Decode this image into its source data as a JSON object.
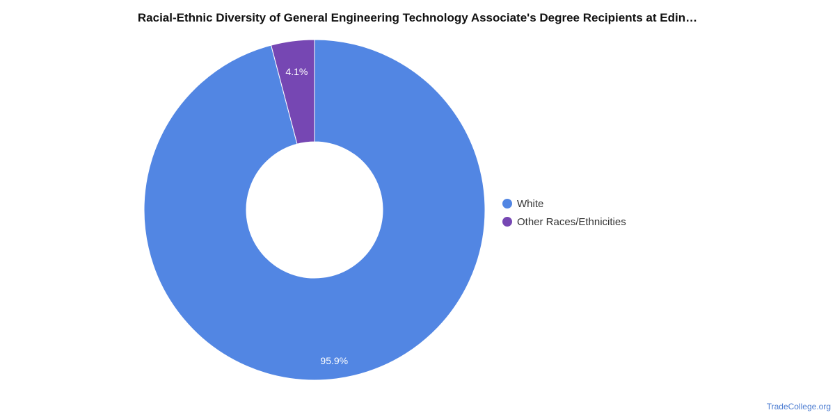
{
  "chart_data": {
    "type": "pie",
    "title": "Racial-Ethnic Diversity of General Engineering Technology Associate's Degree Recipients at Edin…",
    "donut": true,
    "series": [
      {
        "slices": [
          {
            "label": "White",
            "value": 95.9,
            "display": "95.9%",
            "color": "#5286e3"
          },
          {
            "label": "Other Races/Ethnicities",
            "value": 4.1,
            "display": "4.1%",
            "color": "#7647b3"
          }
        ]
      }
    ],
    "legend_placement": "right"
  },
  "source": "TradeCollege.org"
}
